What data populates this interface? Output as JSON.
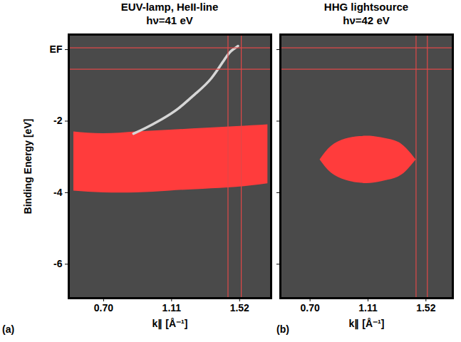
{
  "chart_data": [
    {
      "type": "heatmap",
      "title": "EUV-lamp, HeII-line",
      "subtitle": "hν=41 eV",
      "panel_label": "(a)",
      "xlabel": "k∥ [Å⁻¹]",
      "ylabel": "Binding Energy [eV]",
      "xlim": [
        0.49,
        1.71
      ],
      "ylim": [
        -6.95,
        0.42
      ],
      "xticks": [
        {
          "value": 0.7,
          "label": "0.70"
        },
        {
          "value": 1.11,
          "label": "1.11"
        },
        {
          "value": 1.52,
          "label": "1.52"
        }
      ],
      "yticks": [
        {
          "value": 0,
          "label": "EF"
        },
        -2,
        -4,
        -6
      ],
      "band": {
        "color": "#d6d6d6",
        "x": [
          0.88,
          0.95,
          1.05,
          1.15,
          1.25,
          1.35,
          1.44,
          1.48,
          1.51
        ],
        "y": [
          -2.35,
          -2.2,
          -1.95,
          -1.65,
          -1.25,
          -0.8,
          -0.2,
          0.0,
          0.1
        ]
      },
      "saturated": {
        "color": "#ff3c3c",
        "x": [
          0.52,
          0.7,
          0.9,
          1.1,
          1.3,
          1.5,
          1.69
        ],
        "y_high": [
          -2.3,
          -2.35,
          -2.3,
          -2.25,
          -2.2,
          -2.15,
          -2.1
        ],
        "y_low": [
          -3.95,
          -4.0,
          -4.0,
          -3.95,
          -3.9,
          -3.85,
          -3.75
        ]
      },
      "crosshair": {
        "color": "#e04848",
        "x": [
          1.45,
          1.53
        ],
        "y": [
          0.05,
          -0.55
        ]
      }
    },
    {
      "type": "heatmap",
      "title": "HHG lightsource",
      "subtitle": "hν=42 eV",
      "panel_label": "(b)",
      "xlabel": "k∥ [Å⁻¹]",
      "xlim": [
        0.49,
        1.71
      ],
      "ylim": [
        -6.95,
        0.42
      ],
      "tick_labels": "x",
      "xticks": [
        {
          "value": 0.7,
          "label": "0.70"
        },
        {
          "value": 1.11,
          "label": "1.11"
        },
        {
          "value": 1.52,
          "label": "1.52"
        }
      ],
      "yticks": [
        0,
        -2,
        -4,
        -6
      ],
      "saturated": {
        "color": "#ff3c3c",
        "x": [
          0.77,
          0.85,
          0.95,
          1.05,
          1.15,
          1.25,
          1.35,
          1.45
        ],
        "y_high": [
          -3.08,
          -2.7,
          -2.5,
          -2.43,
          -2.43,
          -2.5,
          -2.65,
          -3.08
        ],
        "y_low": [
          -3.08,
          -3.45,
          -3.65,
          -3.73,
          -3.73,
          -3.65,
          -3.5,
          -3.08
        ]
      },
      "crosshair": {
        "color": "#e04848",
        "x": [
          1.45,
          1.53
        ],
        "y": [
          0.05,
          -0.55
        ]
      }
    }
  ]
}
